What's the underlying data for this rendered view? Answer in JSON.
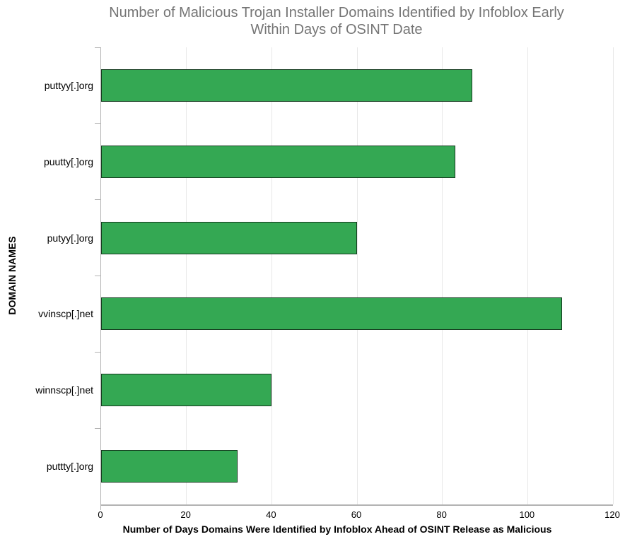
{
  "chart_data": {
    "type": "bar",
    "orientation": "horizontal",
    "title": "Number of Malicious Trojan Installer Domains Identified by Infoblox Early Within Days of OSINT Date",
    "xlabel": "Number of Days Domains Were Identified by Infoblox Ahead of OSINT Release as Malicious",
    "ylabel": "DOMAIN NAMES",
    "categories": [
      "puttyy[.]org",
      "puutty[.]org",
      "putyy[.]org",
      "vvinscp[.]net",
      "winnscp[.]net",
      "puttty[.]org"
    ],
    "values": [
      87,
      83,
      60,
      108,
      40,
      32
    ],
    "xlim": [
      0,
      120
    ],
    "xticks": [
      0,
      20,
      40,
      60,
      80,
      100,
      120
    ],
    "grid": "vertical-only",
    "legend": "none",
    "colors": {
      "bar_fill": "#34a853",
      "bar_border": "#14391e",
      "grid": "#e8e8e8",
      "axis": "#b3b3b3",
      "title_text": "#757575",
      "label_text": "#000000"
    }
  }
}
